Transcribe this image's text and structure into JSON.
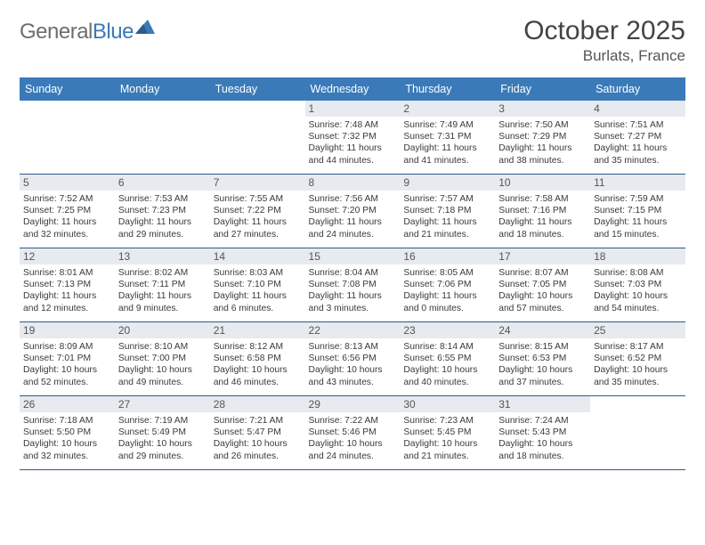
{
  "logo": {
    "text_gray": "General",
    "text_blue": "Blue"
  },
  "title": "October 2025",
  "location": "Burlats, France",
  "colors": {
    "header_bg": "#3a7ab8",
    "header_text": "#ffffff",
    "daybar_bg": "#e7eaee",
    "row_border": "#2e5a87",
    "body_text": "#3a3a3a"
  },
  "weekdays": [
    "Sunday",
    "Monday",
    "Tuesday",
    "Wednesday",
    "Thursday",
    "Friday",
    "Saturday"
  ],
  "weeks": [
    [
      {
        "n": "",
        "sr": "",
        "ss": "",
        "dl1": "",
        "dl2": ""
      },
      {
        "n": "",
        "sr": "",
        "ss": "",
        "dl1": "",
        "dl2": ""
      },
      {
        "n": "",
        "sr": "",
        "ss": "",
        "dl1": "",
        "dl2": ""
      },
      {
        "n": "1",
        "sr": "Sunrise: 7:48 AM",
        "ss": "Sunset: 7:32 PM",
        "dl1": "Daylight: 11 hours",
        "dl2": "and 44 minutes."
      },
      {
        "n": "2",
        "sr": "Sunrise: 7:49 AM",
        "ss": "Sunset: 7:31 PM",
        "dl1": "Daylight: 11 hours",
        "dl2": "and 41 minutes."
      },
      {
        "n": "3",
        "sr": "Sunrise: 7:50 AM",
        "ss": "Sunset: 7:29 PM",
        "dl1": "Daylight: 11 hours",
        "dl2": "and 38 minutes."
      },
      {
        "n": "4",
        "sr": "Sunrise: 7:51 AM",
        "ss": "Sunset: 7:27 PM",
        "dl1": "Daylight: 11 hours",
        "dl2": "and 35 minutes."
      }
    ],
    [
      {
        "n": "5",
        "sr": "Sunrise: 7:52 AM",
        "ss": "Sunset: 7:25 PM",
        "dl1": "Daylight: 11 hours",
        "dl2": "and 32 minutes."
      },
      {
        "n": "6",
        "sr": "Sunrise: 7:53 AM",
        "ss": "Sunset: 7:23 PM",
        "dl1": "Daylight: 11 hours",
        "dl2": "and 29 minutes."
      },
      {
        "n": "7",
        "sr": "Sunrise: 7:55 AM",
        "ss": "Sunset: 7:22 PM",
        "dl1": "Daylight: 11 hours",
        "dl2": "and 27 minutes."
      },
      {
        "n": "8",
        "sr": "Sunrise: 7:56 AM",
        "ss": "Sunset: 7:20 PM",
        "dl1": "Daylight: 11 hours",
        "dl2": "and 24 minutes."
      },
      {
        "n": "9",
        "sr": "Sunrise: 7:57 AM",
        "ss": "Sunset: 7:18 PM",
        "dl1": "Daylight: 11 hours",
        "dl2": "and 21 minutes."
      },
      {
        "n": "10",
        "sr": "Sunrise: 7:58 AM",
        "ss": "Sunset: 7:16 PM",
        "dl1": "Daylight: 11 hours",
        "dl2": "and 18 minutes."
      },
      {
        "n": "11",
        "sr": "Sunrise: 7:59 AM",
        "ss": "Sunset: 7:15 PM",
        "dl1": "Daylight: 11 hours",
        "dl2": "and 15 minutes."
      }
    ],
    [
      {
        "n": "12",
        "sr": "Sunrise: 8:01 AM",
        "ss": "Sunset: 7:13 PM",
        "dl1": "Daylight: 11 hours",
        "dl2": "and 12 minutes."
      },
      {
        "n": "13",
        "sr": "Sunrise: 8:02 AM",
        "ss": "Sunset: 7:11 PM",
        "dl1": "Daylight: 11 hours",
        "dl2": "and 9 minutes."
      },
      {
        "n": "14",
        "sr": "Sunrise: 8:03 AM",
        "ss": "Sunset: 7:10 PM",
        "dl1": "Daylight: 11 hours",
        "dl2": "and 6 minutes."
      },
      {
        "n": "15",
        "sr": "Sunrise: 8:04 AM",
        "ss": "Sunset: 7:08 PM",
        "dl1": "Daylight: 11 hours",
        "dl2": "and 3 minutes."
      },
      {
        "n": "16",
        "sr": "Sunrise: 8:05 AM",
        "ss": "Sunset: 7:06 PM",
        "dl1": "Daylight: 11 hours",
        "dl2": "and 0 minutes."
      },
      {
        "n": "17",
        "sr": "Sunrise: 8:07 AM",
        "ss": "Sunset: 7:05 PM",
        "dl1": "Daylight: 10 hours",
        "dl2": "and 57 minutes."
      },
      {
        "n": "18",
        "sr": "Sunrise: 8:08 AM",
        "ss": "Sunset: 7:03 PM",
        "dl1": "Daylight: 10 hours",
        "dl2": "and 54 minutes."
      }
    ],
    [
      {
        "n": "19",
        "sr": "Sunrise: 8:09 AM",
        "ss": "Sunset: 7:01 PM",
        "dl1": "Daylight: 10 hours",
        "dl2": "and 52 minutes."
      },
      {
        "n": "20",
        "sr": "Sunrise: 8:10 AM",
        "ss": "Sunset: 7:00 PM",
        "dl1": "Daylight: 10 hours",
        "dl2": "and 49 minutes."
      },
      {
        "n": "21",
        "sr": "Sunrise: 8:12 AM",
        "ss": "Sunset: 6:58 PM",
        "dl1": "Daylight: 10 hours",
        "dl2": "and 46 minutes."
      },
      {
        "n": "22",
        "sr": "Sunrise: 8:13 AM",
        "ss": "Sunset: 6:56 PM",
        "dl1": "Daylight: 10 hours",
        "dl2": "and 43 minutes."
      },
      {
        "n": "23",
        "sr": "Sunrise: 8:14 AM",
        "ss": "Sunset: 6:55 PM",
        "dl1": "Daylight: 10 hours",
        "dl2": "and 40 minutes."
      },
      {
        "n": "24",
        "sr": "Sunrise: 8:15 AM",
        "ss": "Sunset: 6:53 PM",
        "dl1": "Daylight: 10 hours",
        "dl2": "and 37 minutes."
      },
      {
        "n": "25",
        "sr": "Sunrise: 8:17 AM",
        "ss": "Sunset: 6:52 PM",
        "dl1": "Daylight: 10 hours",
        "dl2": "and 35 minutes."
      }
    ],
    [
      {
        "n": "26",
        "sr": "Sunrise: 7:18 AM",
        "ss": "Sunset: 5:50 PM",
        "dl1": "Daylight: 10 hours",
        "dl2": "and 32 minutes."
      },
      {
        "n": "27",
        "sr": "Sunrise: 7:19 AM",
        "ss": "Sunset: 5:49 PM",
        "dl1": "Daylight: 10 hours",
        "dl2": "and 29 minutes."
      },
      {
        "n": "28",
        "sr": "Sunrise: 7:21 AM",
        "ss": "Sunset: 5:47 PM",
        "dl1": "Daylight: 10 hours",
        "dl2": "and 26 minutes."
      },
      {
        "n": "29",
        "sr": "Sunrise: 7:22 AM",
        "ss": "Sunset: 5:46 PM",
        "dl1": "Daylight: 10 hours",
        "dl2": "and 24 minutes."
      },
      {
        "n": "30",
        "sr": "Sunrise: 7:23 AM",
        "ss": "Sunset: 5:45 PM",
        "dl1": "Daylight: 10 hours",
        "dl2": "and 21 minutes."
      },
      {
        "n": "31",
        "sr": "Sunrise: 7:24 AM",
        "ss": "Sunset: 5:43 PM",
        "dl1": "Daylight: 10 hours",
        "dl2": "and 18 minutes."
      },
      {
        "n": "",
        "sr": "",
        "ss": "",
        "dl1": "",
        "dl2": ""
      }
    ]
  ]
}
